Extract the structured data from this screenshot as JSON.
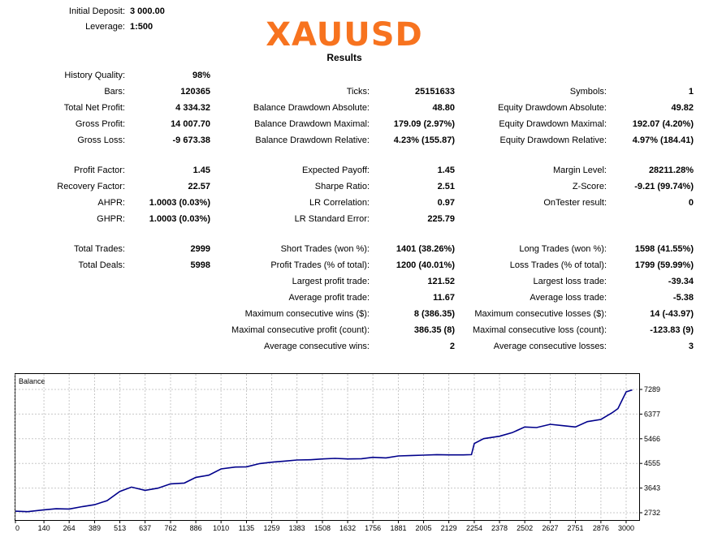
{
  "header": {
    "initial_deposit_label": "Initial Deposit:",
    "initial_deposit_value": "3 000.00",
    "leverage_label": "Leverage:",
    "leverage_value": "1:500",
    "symbol": "XAUUSD",
    "results_title": "Results"
  },
  "stats": {
    "history_quality": {
      "label": "History Quality:",
      "value": "98%"
    },
    "bars": {
      "label": "Bars:",
      "value": "120365"
    },
    "ticks": {
      "label": "Ticks:",
      "value": "25151633"
    },
    "symbols": {
      "label": "Symbols:",
      "value": "1"
    },
    "total_net_profit": {
      "label": "Total Net Profit:",
      "value": "4 334.32"
    },
    "balance_dd_abs": {
      "label": "Balance Drawdown Absolute:",
      "value": "48.80"
    },
    "equity_dd_abs": {
      "label": "Equity Drawdown Absolute:",
      "value": "49.82"
    },
    "gross_profit": {
      "label": "Gross Profit:",
      "value": "14 007.70"
    },
    "balance_dd_max": {
      "label": "Balance Drawdown Maximal:",
      "value": "179.09 (2.97%)"
    },
    "equity_dd_max": {
      "label": "Equity Drawdown Maximal:",
      "value": "192.07 (4.20%)"
    },
    "gross_loss": {
      "label": "Gross Loss:",
      "value": "-9 673.38"
    },
    "balance_dd_rel": {
      "label": "Balance Drawdown Relative:",
      "value": "4.23% (155.87)"
    },
    "equity_dd_rel": {
      "label": "Equity Drawdown Relative:",
      "value": "4.97% (184.41)"
    },
    "profit_factor": {
      "label": "Profit Factor:",
      "value": "1.45"
    },
    "expected_payoff": {
      "label": "Expected Payoff:",
      "value": "1.45"
    },
    "margin_level": {
      "label": "Margin Level:",
      "value": "28211.28%"
    },
    "recovery_factor": {
      "label": "Recovery Factor:",
      "value": "22.57"
    },
    "sharpe_ratio": {
      "label": "Sharpe Ratio:",
      "value": "2.51"
    },
    "z_score": {
      "label": "Z-Score:",
      "value": "-9.21 (99.74%)"
    },
    "ahpr": {
      "label": "AHPR:",
      "value": "1.0003 (0.03%)"
    },
    "lr_correlation": {
      "label": "LR Correlation:",
      "value": "0.97"
    },
    "ontester_result": {
      "label": "OnTester result:",
      "value": "0"
    },
    "ghpr": {
      "label": "GHPR:",
      "value": "1.0003 (0.03%)"
    },
    "lr_std_error": {
      "label": "LR Standard Error:",
      "value": "225.79"
    },
    "total_trades": {
      "label": "Total Trades:",
      "value": "2999"
    },
    "short_trades": {
      "label": "Short Trades (won %):",
      "value": "1401 (38.26%)"
    },
    "long_trades": {
      "label": "Long Trades (won %):",
      "value": "1598 (41.55%)"
    },
    "total_deals": {
      "label": "Total Deals:",
      "value": "5998"
    },
    "profit_trades": {
      "label": "Profit Trades (% of total):",
      "value": "1200 (40.01%)"
    },
    "loss_trades": {
      "label": "Loss Trades (% of total):",
      "value": "1799 (59.99%)"
    },
    "largest_profit": {
      "label": "Largest profit trade:",
      "value": "121.52"
    },
    "largest_loss": {
      "label": "Largest loss trade:",
      "value": "-39.34"
    },
    "avg_profit": {
      "label": "Average profit trade:",
      "value": "11.67"
    },
    "avg_loss": {
      "label": "Average loss trade:",
      "value": "-5.38"
    },
    "max_consec_wins": {
      "label": "Maximum consecutive wins ($):",
      "value": "8 (386.35)"
    },
    "max_consec_losses": {
      "label": "Maximum consecutive losses ($):",
      "value": "14 (-43.97)"
    },
    "maximal_consec_profit": {
      "label": "Maximal consecutive profit (count):",
      "value": "386.35 (8)"
    },
    "maximal_consec_loss": {
      "label": "Maximal consecutive loss (count):",
      "value": "-123.83 (9)"
    },
    "avg_consec_wins": {
      "label": "Average consecutive wins:",
      "value": "2"
    },
    "avg_consec_losses": {
      "label": "Average consecutive losses:",
      "value": "3"
    }
  },
  "chart_data": {
    "type": "line",
    "title": "Balance",
    "line_color": "#00008b",
    "grid": true,
    "xlim": [
      0,
      3060
    ],
    "ylim": [
      2732,
      7289
    ],
    "x_ticks": [
      0,
      140,
      264,
      389,
      513,
      637,
      762,
      886,
      1010,
      1135,
      1259,
      1383,
      1508,
      1632,
      1756,
      1881,
      2005,
      2129,
      2254,
      2378,
      2502,
      2627,
      2751,
      2876,
      3000
    ],
    "y_ticks": [
      7289,
      6377,
      5466,
      4555,
      3643,
      2732
    ],
    "series": [
      {
        "x": [
          0,
          60,
          140,
          200,
          264,
          330,
          389,
          450,
          513,
          570,
          637,
          700,
          762,
          830,
          886,
          950,
          1010,
          1080,
          1135,
          1200,
          1259,
          1320,
          1383,
          1450,
          1508,
          1570,
          1632,
          1700,
          1756,
          1820,
          1881,
          1950,
          2005,
          2070,
          2129,
          2200,
          2240,
          2254,
          2300,
          2378,
          2440,
          2502,
          2560,
          2627,
          2690,
          2751,
          2810,
          2876,
          2930,
          2960,
          3000,
          3030
        ],
        "values": [
          2790,
          2770,
          2840,
          2880,
          2870,
          2960,
          3030,
          3180,
          3520,
          3680,
          3560,
          3640,
          3800,
          3830,
          4040,
          4120,
          4350,
          4420,
          4430,
          4550,
          4600,
          4640,
          4680,
          4690,
          4720,
          4740,
          4720,
          4730,
          4780,
          4760,
          4830,
          4850,
          4860,
          4880,
          4870,
          4870,
          4880,
          5290,
          5470,
          5560,
          5690,
          5900,
          5880,
          6000,
          5950,
          5900,
          6100,
          6180,
          6420,
          6580,
          7200,
          7270
        ]
      }
    ]
  }
}
